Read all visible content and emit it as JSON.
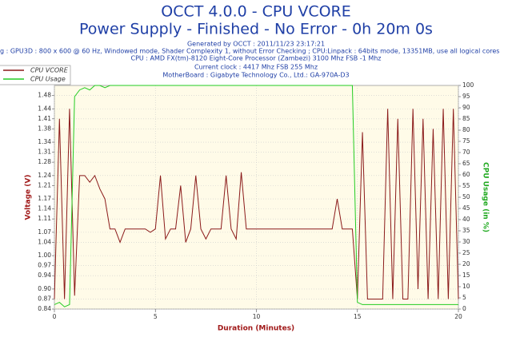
{
  "chart_data": {
    "type": "line",
    "title": "OCCT 4.0.0 - CPU VCORE",
    "subtitle": "Power Supply - Finished - No Error - 0h 20m 0s",
    "info": [
      "Generated by OCCT : 2011/11/23 23:17:21",
      "g : GPU3D : 800 x 600 @ 60 Hz, Windowed mode, Shader Complexity 1, without Error Checking ; CPU:Linpack : 64bits mode, 13351MB, use all logical cores",
      "CPU : AMD FX(tm)-8120 Eight-Core Processor (Zambezi) 3100 Mhz FSB -1 Mhz",
      "Current clock : 4417 Mhz FSB 255 Mhz",
      "MotherBoard : Gigabyte Technology Co., Ltd.: GA-970A-D3"
    ],
    "xlabel": "Duration (Minutes)",
    "ylabel": "Voltage (V)",
    "y2label": "CPU Usage (in %)",
    "xlim": [
      0,
      20
    ],
    "xticks": [
      0,
      5,
      10,
      15,
      20
    ],
    "ylim": [
      0.84,
      1.51
    ],
    "yticks": [
      {
        "value": 0.84,
        "label": "0.84"
      },
      {
        "value": 0.87,
        "label": "0.87"
      },
      {
        "value": 0.9,
        "label": "0.90"
      },
      {
        "value": 0.94,
        "label": "0.94"
      },
      {
        "value": 0.97,
        "label": "0.97"
      },
      {
        "value": 1.0,
        "label": "1.00"
      },
      {
        "value": 1.04,
        "label": "1.04"
      },
      {
        "value": 1.07,
        "label": "1.07"
      },
      {
        "value": 1.11,
        "label": "1.11"
      },
      {
        "value": 1.14,
        "label": "1.14"
      },
      {
        "value": 1.17,
        "label": "1.17"
      },
      {
        "value": 1.21,
        "label": "1.21"
      },
      {
        "value": 1.24,
        "label": "1.24"
      },
      {
        "value": 1.28,
        "label": "1.28"
      },
      {
        "value": 1.31,
        "label": "1.31"
      },
      {
        "value": 1.34,
        "label": "1.34"
      },
      {
        "value": 1.38,
        "label": "1.38"
      },
      {
        "value": 1.41,
        "label": "1.41"
      },
      {
        "value": 1.44,
        "label": "1.44"
      },
      {
        "value": 1.48,
        "label": "1.48"
      }
    ],
    "y2lim": [
      0,
      100
    ],
    "y2ticks": [
      0,
      5,
      10,
      15,
      20,
      25,
      30,
      35,
      40,
      45,
      50,
      55,
      60,
      65,
      70,
      75,
      80,
      85,
      90,
      95,
      100
    ],
    "grid": true,
    "legend": "top-left",
    "x": [
      0,
      0.25,
      0.5,
      0.75,
      1,
      1.25,
      1.5,
      1.75,
      2,
      2.25,
      2.5,
      2.75,
      3,
      3.25,
      3.5,
      3.75,
      4,
      4.25,
      4.5,
      4.75,
      5,
      5.25,
      5.5,
      5.75,
      6,
      6.25,
      6.5,
      6.75,
      7,
      7.25,
      7.5,
      7.75,
      8,
      8.25,
      8.5,
      8.75,
      9,
      9.25,
      9.5,
      9.75,
      10,
      10.25,
      10.5,
      10.75,
      11,
      11.25,
      11.5,
      11.75,
      12,
      12.25,
      12.5,
      12.75,
      13,
      13.25,
      13.5,
      13.75,
      14,
      14.25,
      14.5,
      14.75,
      15,
      15.25,
      15.5,
      15.75,
      16,
      16.25,
      16.5,
      16.75,
      17,
      17.25,
      17.5,
      17.75,
      18,
      18.25,
      18.5,
      18.75,
      19,
      19.25,
      19.5,
      19.75,
      20
    ],
    "series": [
      {
        "name": "CPU VCORE",
        "color": "#8b1a1a",
        "values": [
          0.87,
          1.41,
          0.87,
          1.44,
          0.88,
          1.24,
          1.24,
          1.22,
          1.24,
          1.2,
          1.17,
          1.08,
          1.08,
          1.04,
          1.08,
          1.08,
          1.08,
          1.08,
          1.08,
          1.07,
          1.08,
          1.24,
          1.05,
          1.08,
          1.08,
          1.21,
          1.04,
          1.08,
          1.24,
          1.08,
          1.05,
          1.08,
          1.08,
          1.08,
          1.24,
          1.08,
          1.05,
          1.25,
          1.08,
          1.08,
          1.08,
          1.08,
          1.08,
          1.08,
          1.08,
          1.08,
          1.08,
          1.08,
          1.08,
          1.08,
          1.08,
          1.08,
          1.08,
          1.08,
          1.08,
          1.08,
          1.17,
          1.08,
          1.08,
          1.08,
          0.87,
          1.37,
          0.87,
          0.87,
          0.87,
          0.87,
          1.44,
          0.87,
          1.41,
          0.87,
          0.87,
          1.44,
          0.9,
          1.41,
          0.87,
          1.38,
          0.87,
          1.44,
          0.87,
          1.44,
          0.87
        ]
      },
      {
        "name": "CPU Usage",
        "color": "#22cc22",
        "axis": "y2",
        "values": [
          2,
          3,
          1,
          2,
          95,
          98,
          99,
          98,
          100,
          100,
          99,
          100,
          100,
          100,
          100,
          100,
          100,
          100,
          100,
          100,
          100,
          100,
          100,
          100,
          100,
          100,
          100,
          100,
          100,
          100,
          100,
          100,
          100,
          100,
          100,
          100,
          100,
          100,
          100,
          100,
          100,
          100,
          100,
          100,
          100,
          100,
          100,
          100,
          100,
          100,
          100,
          100,
          100,
          100,
          100,
          100,
          100,
          100,
          100,
          100,
          3,
          2,
          2,
          2,
          2,
          2,
          2,
          2,
          2,
          2,
          2,
          2,
          2,
          2,
          2,
          2,
          2,
          2,
          2,
          2,
          2
        ]
      }
    ]
  }
}
